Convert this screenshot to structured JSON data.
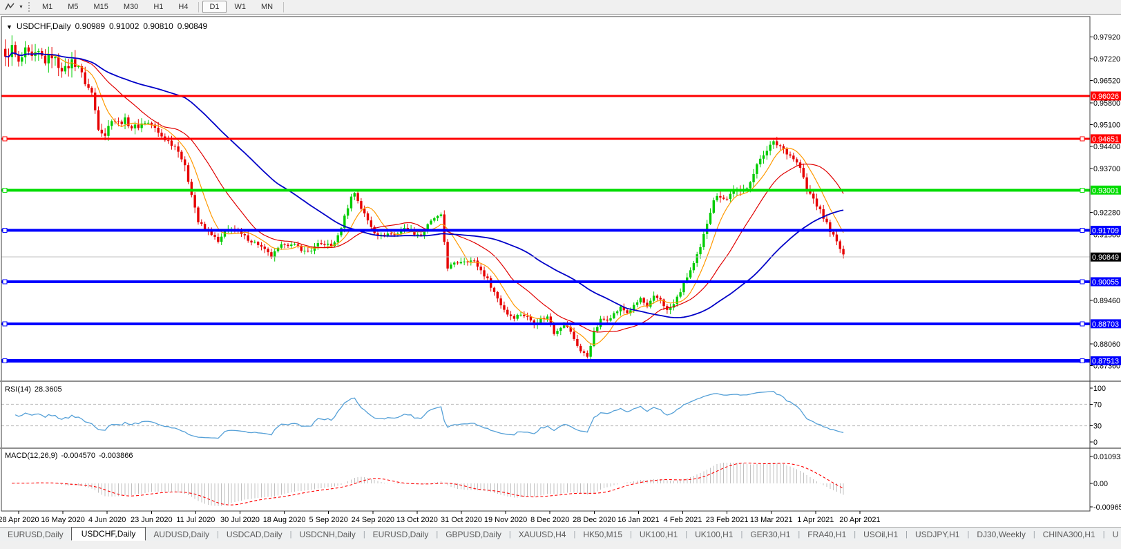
{
  "toolbar": {
    "timeframes": [
      "M1",
      "M5",
      "M15",
      "M30",
      "H1",
      "H4",
      "D1",
      "W1",
      "MN"
    ],
    "active_timeframe": "D1"
  },
  "window_title": {
    "collapse_icon": "▼",
    "symbol_period": "USDCHF,Daily",
    "open": "0.90989",
    "high": "0.91002",
    "low": "0.90810",
    "close": "0.90849"
  },
  "chart_data": {
    "type": "candlestick",
    "symbol": "USDCHF",
    "timeframe": "Daily",
    "bars_count": 253,
    "price_range": [
      0.8736,
      0.9792
    ],
    "price_ticks": [
      0.9792,
      0.9722,
      0.9652,
      0.958,
      0.951,
      0.944,
      0.937,
      0.9228,
      0.9158,
      0.8946,
      0.8806,
      0.8736
    ],
    "current_price": 0.90849,
    "levels": [
      {
        "price": 0.96026,
        "color": "#FF0000",
        "thickness": 3,
        "handle": false
      },
      {
        "price": 0.94651,
        "color": "#FF0000",
        "thickness": 3,
        "handle": true
      },
      {
        "price": 0.93001,
        "color": "#00DC00",
        "thickness": 4,
        "handle": true
      },
      {
        "price": 0.91709,
        "color": "#0000FF",
        "thickness": 4,
        "handle": true
      },
      {
        "price": 0.90055,
        "color": "#0000FF",
        "thickness": 4,
        "handle": true
      },
      {
        "price": 0.88703,
        "color": "#0000FF",
        "thickness": 4,
        "handle": true
      },
      {
        "price": 0.87513,
        "color": "#0000FF",
        "thickness": 5,
        "handle": true
      }
    ],
    "date_labels": [
      "28 Apr 2020",
      "16 May 2020",
      "4 Jun 2020",
      "23 Jun 2020",
      "11 Jul 2020",
      "30 Jul 2020",
      "18 Aug 2020",
      "5 Sep 2020",
      "24 Sep 2020",
      "13 Oct 2020",
      "31 Oct 2020",
      "19 Nov 2020",
      "8 Dec 2020",
      "28 Dec 2020",
      "16 Jan 2021",
      "4 Feb 2021",
      "23 Feb 2021",
      "13 Mar 2021",
      "1 Apr 2021",
      "20 Apr 2021"
    ],
    "close_waypoints": [
      [
        0,
        0.972
      ],
      [
        2,
        0.9758
      ],
      [
        4,
        0.9705
      ],
      [
        6,
        0.9745
      ],
      [
        8,
        0.9722
      ],
      [
        10,
        0.974
      ],
      [
        12,
        0.9716
      ],
      [
        14,
        0.9735
      ],
      [
        16,
        0.9702
      ],
      [
        18,
        0.9686
      ],
      [
        20,
        0.9714
      ],
      [
        22,
        0.97
      ],
      [
        24,
        0.9645
      ],
      [
        26,
        0.9612
      ],
      [
        28,
        0.9502
      ],
      [
        30,
        0.9478
      ],
      [
        32,
        0.953
      ],
      [
        34,
        0.9516
      ],
      [
        36,
        0.9525
      ],
      [
        38,
        0.9502
      ],
      [
        40,
        0.9506
      ],
      [
        42,
        0.952
      ],
      [
        44,
        0.9511
      ],
      [
        46,
        0.9482
      ],
      [
        48,
        0.9465
      ],
      [
        50,
        0.945
      ],
      [
        52,
        0.9432
      ],
      [
        54,
        0.9372
      ],
      [
        56,
        0.9292
      ],
      [
        58,
        0.9198
      ],
      [
        60,
        0.9172
      ],
      [
        62,
        0.916
      ],
      [
        64,
        0.9132
      ],
      [
        66,
        0.9164
      ],
      [
        68,
        0.918
      ],
      [
        70,
        0.9162
      ],
      [
        72,
        0.915
      ],
      [
        74,
        0.9136
      ],
      [
        76,
        0.9126
      ],
      [
        78,
        0.9106
      ],
      [
        80,
        0.9086
      ],
      [
        82,
        0.911
      ],
      [
        84,
        0.913
      ],
      [
        86,
        0.9122
      ],
      [
        88,
        0.9119
      ],
      [
        90,
        0.9102
      ],
      [
        92,
        0.9108
      ],
      [
        94,
        0.9124
      ],
      [
        96,
        0.9128
      ],
      [
        98,
        0.912
      ],
      [
        100,
        0.915
      ],
      [
        102,
        0.9215
      ],
      [
        104,
        0.9278
      ],
      [
        105,
        0.9292
      ],
      [
        107,
        0.9242
      ],
      [
        109,
        0.9202
      ],
      [
        111,
        0.9166
      ],
      [
        113,
        0.9152
      ],
      [
        115,
        0.916
      ],
      [
        117,
        0.9156
      ],
      [
        119,
        0.917
      ],
      [
        121,
        0.918
      ],
      [
        123,
        0.9162
      ],
      [
        125,
        0.9156
      ],
      [
        127,
        0.9186
      ],
      [
        129,
        0.921
      ],
      [
        131,
        0.9216
      ],
      [
        133,
        0.9052
      ],
      [
        135,
        0.9062
      ],
      [
        137,
        0.9072
      ],
      [
        139,
        0.9076
      ],
      [
        141,
        0.907
      ],
      [
        143,
        0.9042
      ],
      [
        145,
        0.9012
      ],
      [
        147,
        0.8972
      ],
      [
        149,
        0.8932
      ],
      [
        151,
        0.8902
      ],
      [
        153,
        0.8892
      ],
      [
        155,
        0.8902
      ],
      [
        157,
        0.8892
      ],
      [
        159,
        0.8872
      ],
      [
        161,
        0.8886
      ],
      [
        163,
        0.8892
      ],
      [
        165,
        0.8842
      ],
      [
        167,
        0.8862
      ],
      [
        169,
        0.8862
      ],
      [
        171,
        0.8822
      ],
      [
        173,
        0.8782
      ],
      [
        175,
        0.8766
      ],
      [
        177,
        0.8842
      ],
      [
        179,
        0.8882
      ],
      [
        181,
        0.8886
      ],
      [
        183,
        0.8902
      ],
      [
        185,
        0.8922
      ],
      [
        187,
        0.8906
      ],
      [
        189,
        0.8926
      ],
      [
        191,
        0.8952
      ],
      [
        193,
        0.8922
      ],
      [
        195,
        0.8956
      ],
      [
        197,
        0.895
      ],
      [
        199,
        0.8912
      ],
      [
        201,
        0.8932
      ],
      [
        203,
        0.8976
      ],
      [
        205,
        0.9022
      ],
      [
        207,
        0.9062
      ],
      [
        209,
        0.9112
      ],
      [
        211,
        0.9196
      ],
      [
        213,
        0.9272
      ],
      [
        215,
        0.9282
      ],
      [
        217,
        0.9272
      ],
      [
        219,
        0.9302
      ],
      [
        221,
        0.9292
      ],
      [
        223,
        0.9312
      ],
      [
        225,
        0.9352
      ],
      [
        227,
        0.9402
      ],
      [
        229,
        0.9432
      ],
      [
        231,
        0.9452
      ],
      [
        233,
        0.9442
      ],
      [
        235,
        0.9422
      ],
      [
        237,
        0.9402
      ],
      [
        239,
        0.9372
      ],
      [
        241,
        0.9302
      ],
      [
        243,
        0.9272
      ],
      [
        245,
        0.9232
      ],
      [
        247,
        0.9192
      ],
      [
        249,
        0.9152
      ],
      [
        251,
        0.9112
      ],
      [
        252,
        0.9086
      ]
    ],
    "colors": {
      "bull": "#00CC00",
      "bear": "#E60000",
      "ma_fast": "#FF9900",
      "ma_mid": "#E00000",
      "ma_slow": "#0000C8",
      "rsi": "#55A0D7",
      "macd_hist": "#C0C0C0",
      "macd_signal": "#FF0000",
      "current": "#C0C0C0"
    },
    "indicators": {
      "rsi": {
        "label": "RSI(14)",
        "value": "28.3605",
        "axis": [
          100,
          70,
          30,
          0
        ],
        "overbought": 70,
        "oversold": 30
      },
      "macd": {
        "label": "MACD(12,26,9)",
        "main_value": "-0.004570",
        "signal_value": "-0.003866",
        "axis_top": "0.010933",
        "axis_zero": "0.00",
        "axis_bottom": "-0.009653",
        "fast": 12,
        "slow": 26,
        "signal": 9
      }
    }
  },
  "tabbar": {
    "tabs": [
      {
        "label": "EURUSD,Daily",
        "active": false
      },
      {
        "label": "USDCHF,Daily",
        "active": true
      },
      {
        "label": "AUDUSD,Daily",
        "active": false
      },
      {
        "label": "USDCAD,Daily",
        "active": false
      },
      {
        "label": "USDCNH,Daily",
        "active": false
      },
      {
        "label": "EURUSD,Daily",
        "active": false
      },
      {
        "label": "GBPUSD,Daily",
        "active": false
      },
      {
        "label": "XAUUSD,H4",
        "active": false
      },
      {
        "label": "HK50,M15",
        "active": false
      },
      {
        "label": "UK100,H1",
        "active": false
      },
      {
        "label": "UK100,H1",
        "active": false
      },
      {
        "label": "GER30,H1",
        "active": false
      },
      {
        "label": "FRA40,H1",
        "active": false
      },
      {
        "label": "USOil,H1",
        "active": false
      },
      {
        "label": "USDJPY,H1",
        "active": false
      },
      {
        "label": "DJ30,Weekly",
        "active": false
      },
      {
        "label": "CHINA300,H1",
        "active": false
      },
      {
        "label": "U",
        "active": false
      }
    ],
    "scroll_left": "◂",
    "scroll_right": "▸"
  }
}
